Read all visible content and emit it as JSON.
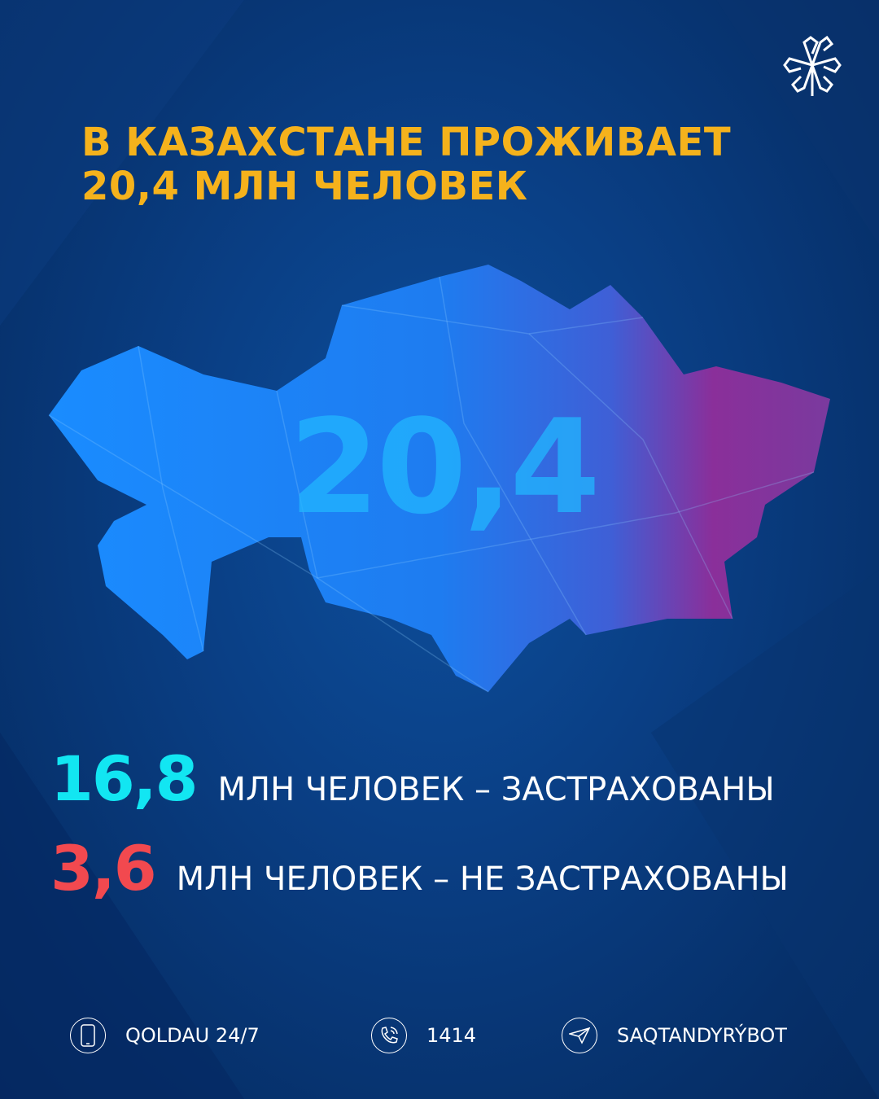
{
  "header": {
    "title_line1": "В КАЗАХСТАНЕ ПРОЖИВАЕТ",
    "title_line2": "20,4 МЛН ЧЕЛОВЕК",
    "logo": "snowflake-logo"
  },
  "map": {
    "value": "20,4",
    "gradient_colors": [
      "#1a8cff",
      "#1e6fe8",
      "#8a2f9a"
    ]
  },
  "stats": [
    {
      "value": "16,8",
      "label": "МЛН ЧЕЛОВЕК – ЗАСТРАХОВАНЫ",
      "color": "#12e6f2"
    },
    {
      "value": "3,6",
      "label": "МЛН ЧЕЛОВЕК – НЕ ЗАСТРАХОВАНЫ",
      "color": "#f2494f"
    }
  ],
  "footer": [
    {
      "icon": "smartphone-icon",
      "label": "QOLDAU 24/7"
    },
    {
      "icon": "phone-icon",
      "label": "1414"
    },
    {
      "icon": "telegram-icon",
      "label": "SAQTANDYRÝBOT"
    }
  ],
  "colors": {
    "title": "#f5b21c",
    "background": "#0a3f85"
  }
}
